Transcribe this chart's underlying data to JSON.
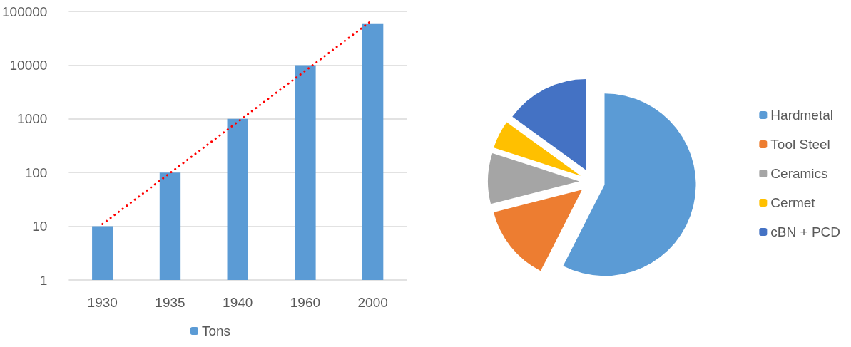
{
  "chart_data": [
    {
      "type": "bar",
      "categories": [
        "1930",
        "1935",
        "1940",
        "1960",
        "2000"
      ],
      "series": [
        {
          "name": "Tons",
          "color": "#5b9bd5",
          "values": [
            10,
            100,
            1000,
            10000,
            60000
          ]
        },
        {
          "type": "line",
          "color": "#ff0000",
          "line_style": "dotted",
          "marker": "none",
          "values": [
            11,
            null,
            null,
            null,
            70000
          ]
        }
      ],
      "log": "y",
      "ylim": [
        1,
        100000
      ],
      "yticks": [
        1,
        10,
        100,
        1000,
        10000,
        100000
      ],
      "grid": "y",
      "legend": "bottom"
    },
    {
      "type": "pie",
      "categories": [
        "Hardmetal",
        "Tool Steel",
        "Ceramics",
        "Cermet",
        "cBN + PCD"
      ],
      "values": [
        57.5,
        13.5,
        9,
        5,
        15
      ],
      "colors": [
        "#5b9bd5",
        "#ed7d31",
        "#a5a5a5",
        "#ffc000",
        "#4472c4"
      ],
      "legend": "right"
    }
  ]
}
